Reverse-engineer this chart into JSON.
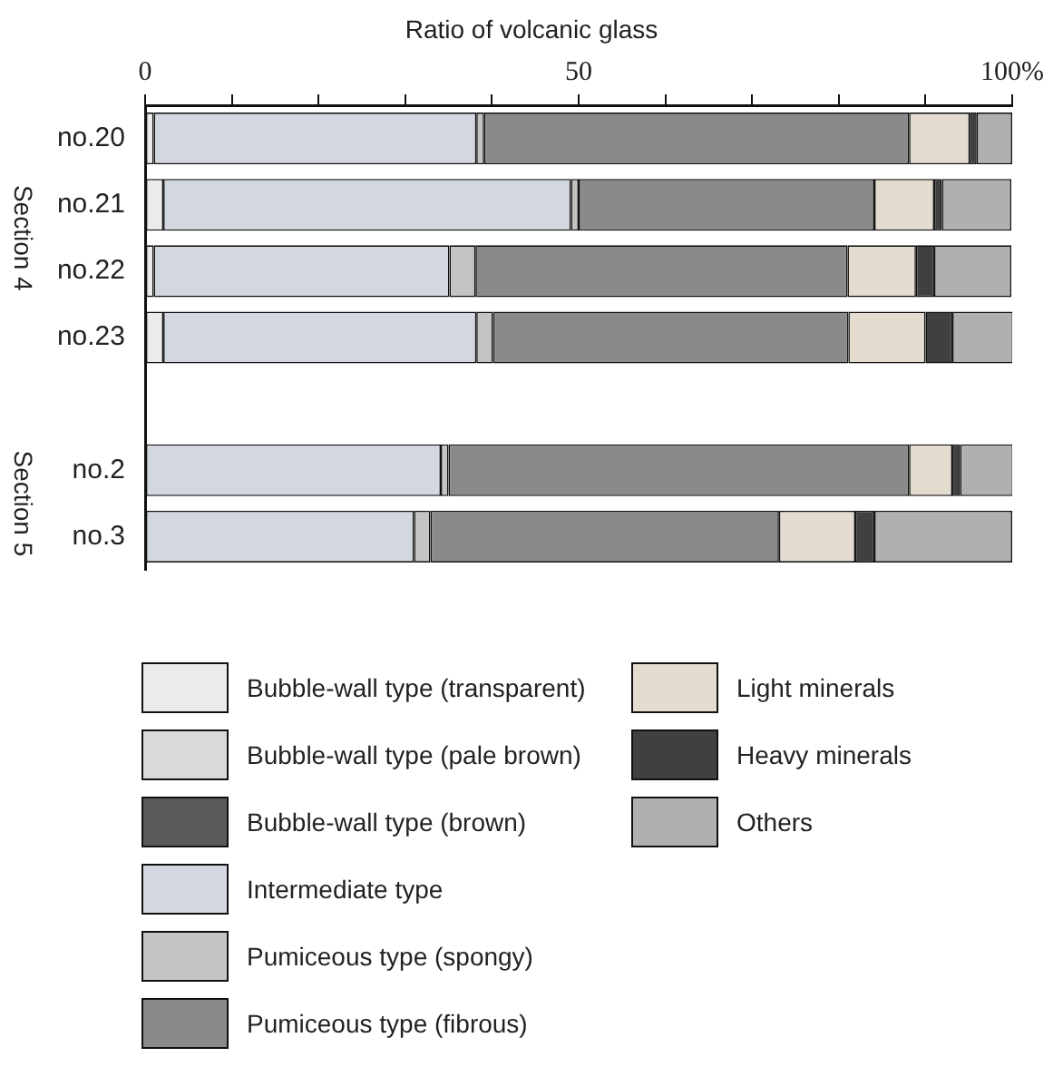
{
  "chart_data": {
    "type": "bar",
    "orientation": "horizontal",
    "stacked": true,
    "xlabel": "Ratio of volcanic glass",
    "categories": [
      "no.20",
      "no.21",
      "no.22",
      "no.23",
      null,
      "no.2",
      "no.3"
    ],
    "xlim": [
      0,
      100
    ],
    "xticks": [
      0,
      {
        "value": 10,
        "label": null
      },
      {
        "value": 20,
        "label": null
      },
      {
        "value": 30,
        "label": null
      },
      {
        "value": 40,
        "label": null
      },
      50,
      {
        "value": 60,
        "label": null
      },
      {
        "value": 70,
        "label": null
      },
      {
        "value": 80,
        "label": null
      },
      {
        "value": 90,
        "label": null
      },
      {
        "value": 100,
        "label": "100%"
      }
    ],
    "annotations": [
      "Section 4",
      "Section 5"
    ],
    "legend": "bottom",
    "grid": false,
    "series": [
      {
        "name": "Bubble-wall type (transparent)",
        "color": "#ebebeb",
        "values": [
          1.0,
          2.1,
          1.0,
          2.1,
          null,
          0,
          0
        ]
      },
      {
        "name": "Bubble-wall type (pale brown)",
        "color": "#d9d9d9",
        "values": [
          0,
          0,
          0,
          0,
          null,
          0,
          0
        ]
      },
      {
        "name": "Bubble-wall type (brown)",
        "color": "#5a5a5a",
        "values": [
          0,
          0,
          0,
          0,
          null,
          0,
          0
        ]
      },
      {
        "name": "Intermediate type",
        "color": "#d3d8e0",
        "values": [
          37.2,
          47.0,
          34.1,
          36.1,
          null,
          34.1,
          31.0
        ]
      },
      {
        "name": "Pumiceous type (spongy)",
        "color": "#c4c4c4",
        "values": [
          0.9,
          0.9,
          3.0,
          1.9,
          null,
          0.9,
          1.9
        ]
      },
      {
        "name": "Pumiceous type (fibrous)",
        "color": "#8a8a8a",
        "values": [
          49.0,
          34.1,
          42.9,
          41.0,
          null,
          53.1,
          40.2
        ]
      },
      {
        "name": "Light minerals",
        "color": "#e3dccf",
        "values": [
          7.0,
          6.9,
          7.9,
          8.9,
          null,
          5.0,
          8.8
        ]
      },
      {
        "name": "Heavy minerals",
        "color": "#404040",
        "values": [
          0.8,
          0.9,
          2.1,
          3.1,
          null,
          0.9,
          2.2
        ]
      },
      {
        "name": "Others",
        "color": "#b0b0b0",
        "values": [
          4.1,
          8.0,
          8.9,
          7.0,
          null,
          6.1,
          15.9
        ]
      }
    ]
  }
}
